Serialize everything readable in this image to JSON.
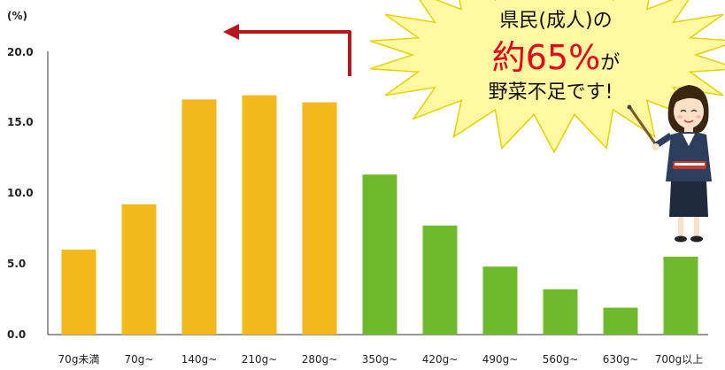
{
  "chart_data": {
    "type": "bar",
    "ylabel": "(%)",
    "ylim": [
      0,
      20
    ],
    "yticks": [
      "0.0",
      "5.0",
      "10.0",
      "15.0",
      "20.0"
    ],
    "categories": [
      "70g未満",
      "70g~",
      "140g~",
      "210g~",
      "280g~",
      "350g~",
      "420g~",
      "490g~",
      "560g~",
      "630g~",
      "700g以上"
    ],
    "values": [
      6.0,
      9.2,
      16.6,
      16.9,
      16.4,
      11.3,
      7.7,
      4.8,
      3.2,
      1.9,
      5.5
    ],
    "bar_colors": [
      "#f2b81c",
      "#f2b81c",
      "#f2b81c",
      "#f2b81c",
      "#f2b81c",
      "#6fba2c",
      "#6fba2c",
      "#6fba2c",
      "#6fba2c",
      "#6fba2c",
      "#6fba2c"
    ],
    "grid": false
  },
  "callout": {
    "line1": "県民(成人)の",
    "line2_big": "約65%",
    "line2_suffix": "が",
    "line3": "野菜不足です!"
  },
  "colors": {
    "arrow": "#b8161b",
    "burst_fill": "#fff8a0",
    "burst_stroke": "#e6d200",
    "big_text": "#e8001c"
  },
  "illustration": {
    "icon": "teacher-with-pointer-icon"
  }
}
